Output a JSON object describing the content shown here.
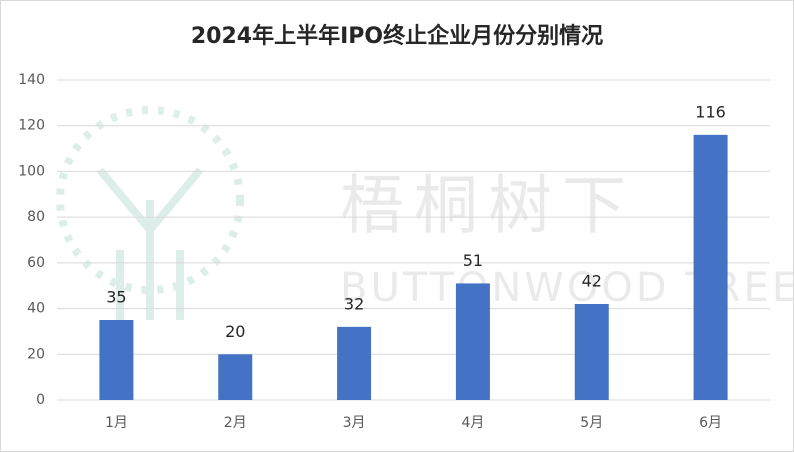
{
  "chart_data": {
    "type": "bar",
    "title": "2024年上半年IPO终止企业月份分别情况",
    "categories": [
      "1月",
      "2月",
      "3月",
      "4月",
      "5月",
      "6月"
    ],
    "values": [
      35,
      20,
      32,
      51,
      42,
      116
    ],
    "color": "#4472c4",
    "ylim": [
      0,
      140
    ],
    "yticks": [
      0,
      20,
      40,
      60,
      80,
      100,
      120,
      140
    ],
    "grid": true,
    "data_labels": true
  },
  "watermark": {
    "chinese": "梧桐树下",
    "english": "BUTTONWOOD TREE"
  }
}
